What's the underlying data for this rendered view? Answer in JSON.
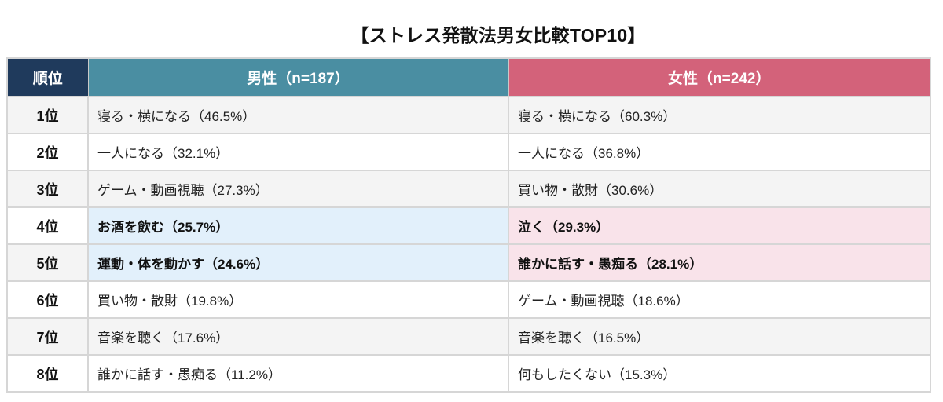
{
  "title": "【ストレス発散法男女比較TOP10】",
  "colors": {
    "rank_header": "#1f3a5c",
    "male_header": "#4a8ea2",
    "female_header": "#d3627a",
    "male_highlight": "#e2f0fb",
    "female_highlight": "#f9e3ea",
    "row_alt": "#f4f4f4"
  },
  "headers": {
    "rank": "順位",
    "male": "男性（n=187）",
    "female": "女性（n=242）"
  },
  "rows": [
    {
      "rank": "1位",
      "male": "寝る・横になる（46.5%）",
      "female": "寝る・横になる（60.3%）"
    },
    {
      "rank": "2位",
      "male": "一人になる（32.1%）",
      "female": "一人になる（36.8%）"
    },
    {
      "rank": "3位",
      "male": "ゲーム・動画視聴（27.3%）",
      "female": "買い物・散財（30.6%）"
    },
    {
      "rank": "4位",
      "male": "お酒を飲む（25.7%）",
      "female": "泣く（29.3%）"
    },
    {
      "rank": "5位",
      "male": "運動・体を動かす（24.6%）",
      "female": "誰かに話す・愚痴る（28.1%）"
    },
    {
      "rank": "6位",
      "male": "買い物・散財（19.8%）",
      "female": "ゲーム・動画視聴（18.6%）"
    },
    {
      "rank": "7位",
      "male": "音楽を聴く（17.6%）",
      "female": "音楽を聴く（16.5%）"
    },
    {
      "rank": "8位",
      "male": "誰かに話す・愚痴る（11.2%）",
      "female": "何もしたくない（15.3%）"
    }
  ],
  "chart_data": {
    "type": "table",
    "title": "【ストレス発散法男女比較TOP10】",
    "columns": [
      "順位",
      "男性（n=187）",
      "女性（n=242）"
    ],
    "categories": [
      "1位",
      "2位",
      "3位",
      "4位",
      "5位",
      "6位",
      "7位",
      "8位"
    ],
    "series": [
      {
        "name": "男性（n=187）",
        "labels": [
          "寝る・横になる",
          "一人になる",
          "ゲーム・動画視聴",
          "お酒を飲む",
          "運動・体を動かす",
          "買い物・散財",
          "音楽を聴く",
          "誰かに話す・愚痴る"
        ],
        "values": [
          46.5,
          32.1,
          27.3,
          25.7,
          24.6,
          19.8,
          17.6,
          11.2
        ]
      },
      {
        "name": "女性（n=242）",
        "labels": [
          "寝る・横になる",
          "一人になる",
          "買い物・散財",
          "泣く",
          "誰かに話す・愚痴る",
          "ゲーム・動画視聴",
          "音楽を聴く",
          "何もしたくない"
        ],
        "values": [
          60.3,
          36.8,
          30.6,
          29.3,
          28.1,
          18.6,
          16.5,
          15.3
        ]
      }
    ],
    "unit": "%",
    "highlighted_ranks": [
      "4位",
      "5位"
    ]
  }
}
